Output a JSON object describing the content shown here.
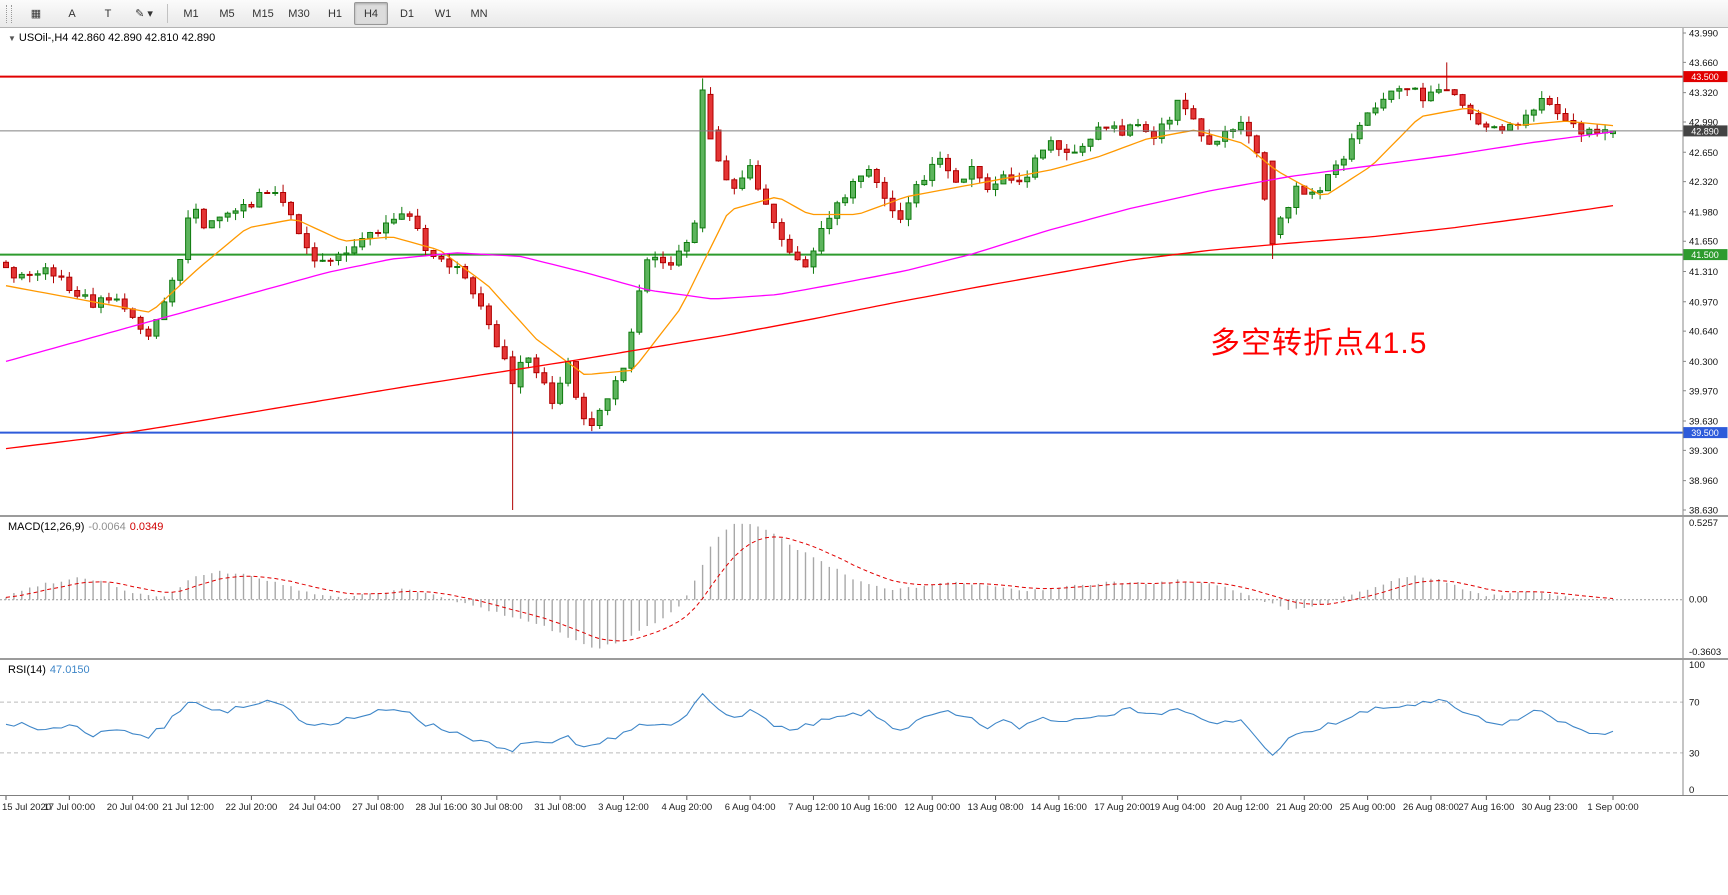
{
  "icons": {
    "chart_arrow": "▼"
  },
  "toolbar": {
    "tools": [
      {
        "name": "chart-grid-icon",
        "glyph": "▦"
      },
      {
        "name": "text-tool-a-button",
        "glyph": "A"
      },
      {
        "name": "text-tool-t-button",
        "glyph": "T"
      },
      {
        "name": "draw-tools-dropdown",
        "glyph": "✎ ▾"
      }
    ],
    "timeframes": [
      {
        "label": "M1",
        "active": false
      },
      {
        "label": "M5",
        "active": false
      },
      {
        "label": "M15",
        "active": false
      },
      {
        "label": "M30",
        "active": false
      },
      {
        "label": "H1",
        "active": false
      },
      {
        "label": "H4",
        "active": true
      },
      {
        "label": "D1",
        "active": false
      },
      {
        "label": "W1",
        "active": false
      },
      {
        "label": "MN",
        "active": false
      }
    ]
  },
  "chart_data": {
    "type": "candlestick",
    "symbol_title": "USOil-,H4 42.860 42.890 42.810 42.890",
    "symbol": "USOil-",
    "timeframe": "H4",
    "ohlc": {
      "open": "42.860",
      "high": "42.890",
      "low": "42.810",
      "close": "42.890"
    },
    "price_axis_labels": [
      "43.990",
      "43.660",
      "43.320",
      "42.990",
      "42.650",
      "42.320",
      "41.980",
      "41.650",
      "41.310",
      "40.970",
      "40.640",
      "40.300",
      "39.970",
      "39.630",
      "39.300",
      "38.960",
      "38.630"
    ],
    "hlines": [
      {
        "price": 43.5,
        "label": "43.500",
        "color": "#e10000"
      },
      {
        "price": 41.5,
        "label": "41.500",
        "color": "#2e9b2e"
      },
      {
        "price": 39.5,
        "label": "39.500",
        "color": "#2e5bda"
      }
    ],
    "current_price": {
      "value": 42.89,
      "label": "42.890",
      "line_color": "#808080",
      "badge_color": "#434343"
    },
    "annotation": {
      "text": "多空转折点41.5",
      "color": "#ff0000"
    },
    "time_labels": [
      "15 Jul 2020",
      "17 Jul 00:00",
      "20 Jul 04:00",
      "21 Jul 12:00",
      "22 Jul 20:00",
      "24 Jul 04:00",
      "27 Jul 08:00",
      "28 Jul 16:00",
      "30 Jul 08:00",
      "31 Jul 08:00",
      "3 Aug 12:00",
      "4 Aug 20:00",
      "6 Aug 04:00",
      "7 Aug 12:00",
      "10 Aug 16:00",
      "12 Aug 00:00",
      "13 Aug 08:00",
      "14 Aug 16:00",
      "17 Aug 20:00",
      "19 Aug 04:00",
      "20 Aug 12:00",
      "21 Aug 20:00",
      "25 Aug 00:00",
      "26 Aug 08:00",
      "27 Aug 16:00",
      "30 Aug 23:00",
      "1 Sep 00:00"
    ],
    "bars": 204,
    "candle_colors": {
      "up_fill": "#5db45d",
      "up_border": "#0e7a0e",
      "down_fill": "#e43535",
      "down_border": "#b00000"
    },
    "close_anchors": [
      [
        0,
        41.35
      ],
      [
        0.012,
        41.2
      ],
      [
        0.025,
        41.38
      ],
      [
        0.04,
        41.1
      ],
      [
        0.055,
        40.95
      ],
      [
        0.068,
        41.05
      ],
      [
        0.088,
        40.55
      ],
      [
        0.098,
        40.9
      ],
      [
        0.108,
        41.4
      ],
      [
        0.115,
        42.1
      ],
      [
        0.125,
        41.8
      ],
      [
        0.138,
        41.95
      ],
      [
        0.15,
        42.05
      ],
      [
        0.166,
        42.25
      ],
      [
        0.178,
        41.9
      ],
      [
        0.19,
        41.5
      ],
      [
        0.2,
        41.4
      ],
      [
        0.215,
        41.55
      ],
      [
        0.232,
        41.8
      ],
      [
        0.25,
        42.0
      ],
      [
        0.262,
        41.55
      ],
      [
        0.272,
        41.4
      ],
      [
        0.285,
        41.3
      ],
      [
        0.298,
        40.8
      ],
      [
        0.31,
        40.3
      ],
      [
        0.315,
        40.05
      ],
      [
        0.322,
        40.35
      ],
      [
        0.33,
        40.2
      ],
      [
        0.34,
        39.85
      ],
      [
        0.35,
        40.3
      ],
      [
        0.358,
        39.7
      ],
      [
        0.365,
        39.62
      ],
      [
        0.375,
        39.95
      ],
      [
        0.385,
        40.3
      ],
      [
        0.395,
        41.2
      ],
      [
        0.402,
        41.55
      ],
      [
        0.412,
        41.35
      ],
      [
        0.422,
        41.6
      ],
      [
        0.429,
        41.85
      ],
      [
        0.433,
        43.3
      ],
      [
        0.439,
        42.9
      ],
      [
        0.447,
        42.35
      ],
      [
        0.455,
        42.2
      ],
      [
        0.463,
        42.5
      ],
      [
        0.472,
        42.05
      ],
      [
        0.482,
        41.7
      ],
      [
        0.498,
        41.32
      ],
      [
        0.508,
        41.8
      ],
      [
        0.518,
        42.1
      ],
      [
        0.536,
        42.45
      ],
      [
        0.548,
        42.15
      ],
      [
        0.556,
        41.9
      ],
      [
        0.57,
        42.35
      ],
      [
        0.583,
        42.6
      ],
      [
        0.592,
        42.3
      ],
      [
        0.602,
        42.5
      ],
      [
        0.612,
        42.2
      ],
      [
        0.622,
        42.45
      ],
      [
        0.632,
        42.25
      ],
      [
        0.642,
        42.6
      ],
      [
        0.652,
        42.8
      ],
      [
        0.662,
        42.6
      ],
      [
        0.673,
        42.8
      ],
      [
        0.684,
        42.95
      ],
      [
        0.695,
        42.85
      ],
      [
        0.705,
        43.0
      ],
      [
        0.714,
        42.85
      ],
      [
        0.722,
        42.95
      ],
      [
        0.73,
        43.25
      ],
      [
        0.74,
        42.95
      ],
      [
        0.75,
        42.7
      ],
      [
        0.76,
        42.85
      ],
      [
        0.77,
        42.95
      ],
      [
        0.78,
        42.6
      ],
      [
        0.786,
        41.65
      ],
      [
        0.794,
        41.95
      ],
      [
        0.804,
        42.25
      ],
      [
        0.814,
        42.15
      ],
      [
        0.822,
        42.4
      ],
      [
        0.83,
        42.55
      ],
      [
        0.845,
        43.0
      ],
      [
        0.862,
        43.3
      ],
      [
        0.875,
        43.35
      ],
      [
        0.885,
        43.25
      ],
      [
        0.895,
        43.4
      ],
      [
        0.905,
        43.2
      ],
      [
        0.915,
        43.0
      ],
      [
        0.925,
        42.9
      ],
      [
        0.934,
        42.95
      ],
      [
        0.944,
        43.0
      ],
      [
        0.955,
        43.25
      ],
      [
        0.968,
        43.1
      ],
      [
        0.98,
        42.9
      ],
      [
        1,
        42.89
      ]
    ],
    "special_bars": [
      {
        "f": 0.315,
        "open": 40.35,
        "close": 40.05,
        "low": 38.63
      },
      {
        "f": 0.433,
        "open": 41.8,
        "close": 43.35,
        "high": 43.48,
        "low": 41.75
      },
      {
        "f": 0.439,
        "open": 43.3,
        "close": 42.8
      },
      {
        "f": 0.786,
        "open": 42.55,
        "close": 41.62,
        "low": 41.45
      },
      {
        "f": 0.895,
        "high": 43.66
      },
      {
        "f": 1.0,
        "open": 42.86,
        "high": 42.89,
        "low": 42.81,
        "close": 42.89
      }
    ],
    "ma_lines": [
      {
        "name": "ma-fast",
        "color": "#ff9900",
        "anchors": [
          [
            0,
            41.15
          ],
          [
            0.03,
            41.05
          ],
          [
            0.06,
            40.95
          ],
          [
            0.09,
            40.85
          ],
          [
            0.12,
            41.35
          ],
          [
            0.15,
            41.8
          ],
          [
            0.18,
            41.9
          ],
          [
            0.21,
            41.65
          ],
          [
            0.24,
            41.7
          ],
          [
            0.27,
            41.55
          ],
          [
            0.3,
            41.15
          ],
          [
            0.33,
            40.55
          ],
          [
            0.36,
            40.15
          ],
          [
            0.39,
            40.2
          ],
          [
            0.42,
            40.9
          ],
          [
            0.45,
            42.0
          ],
          [
            0.48,
            42.15
          ],
          [
            0.5,
            41.95
          ],
          [
            0.53,
            41.95
          ],
          [
            0.56,
            42.15
          ],
          [
            0.59,
            42.25
          ],
          [
            0.62,
            42.35
          ],
          [
            0.65,
            42.45
          ],
          [
            0.68,
            42.6
          ],
          [
            0.71,
            42.8
          ],
          [
            0.74,
            42.9
          ],
          [
            0.77,
            42.75
          ],
          [
            0.79,
            42.45
          ],
          [
            0.82,
            42.15
          ],
          [
            0.85,
            42.5
          ],
          [
            0.88,
            43.05
          ],
          [
            0.91,
            43.15
          ],
          [
            0.94,
            42.95
          ],
          [
            0.97,
            43.0
          ],
          [
            1,
            42.95
          ]
        ]
      },
      {
        "name": "ma-mid",
        "color": "#ff00ff",
        "anchors": [
          [
            0,
            40.3
          ],
          [
            0.05,
            40.55
          ],
          [
            0.1,
            40.8
          ],
          [
            0.15,
            41.05
          ],
          [
            0.2,
            41.3
          ],
          [
            0.24,
            41.45
          ],
          [
            0.28,
            41.52
          ],
          [
            0.32,
            41.48
          ],
          [
            0.36,
            41.3
          ],
          [
            0.4,
            41.1
          ],
          [
            0.44,
            41.0
          ],
          [
            0.48,
            41.05
          ],
          [
            0.52,
            41.18
          ],
          [
            0.56,
            41.32
          ],
          [
            0.6,
            41.5
          ],
          [
            0.65,
            41.78
          ],
          [
            0.7,
            42.02
          ],
          [
            0.75,
            42.22
          ],
          [
            0.8,
            42.38
          ],
          [
            0.85,
            42.5
          ],
          [
            0.9,
            42.62
          ],
          [
            0.95,
            42.76
          ],
          [
            1,
            42.88
          ]
        ]
      },
      {
        "name": "ma-slow",
        "color": "#ff0000",
        "anchors": [
          [
            0,
            39.32
          ],
          [
            0.05,
            39.43
          ],
          [
            0.1,
            39.57
          ],
          [
            0.15,
            39.72
          ],
          [
            0.2,
            39.87
          ],
          [
            0.25,
            40.02
          ],
          [
            0.3,
            40.16
          ],
          [
            0.35,
            40.3
          ],
          [
            0.4,
            40.45
          ],
          [
            0.45,
            40.6
          ],
          [
            0.5,
            40.77
          ],
          [
            0.55,
            40.95
          ],
          [
            0.6,
            41.12
          ],
          [
            0.65,
            41.28
          ],
          [
            0.7,
            41.44
          ],
          [
            0.75,
            41.55
          ],
          [
            0.8,
            41.63
          ],
          [
            0.85,
            41.7
          ],
          [
            0.9,
            41.8
          ],
          [
            0.95,
            41.92
          ],
          [
            1,
            42.05
          ]
        ]
      }
    ],
    "macd": {
      "name": "MACD(12,26,9)",
      "value_main": "-0.0064",
      "value_signal": "0.0349",
      "axis_max": "0.5257",
      "axis_zero": "0.00",
      "axis_min": "-0.3603",
      "hist_color": "#a8a8a8",
      "signal_color": "#e00000",
      "anchors": [
        [
          0,
          0.02
        ],
        [
          0.02,
          0.1
        ],
        [
          0.045,
          0.15
        ],
        [
          0.06,
          0.13
        ],
        [
          0.08,
          0.04
        ],
        [
          0.1,
          0.02
        ],
        [
          0.115,
          0.14
        ],
        [
          0.13,
          0.19
        ],
        [
          0.15,
          0.17
        ],
        [
          0.17,
          0.11
        ],
        [
          0.19,
          0.04
        ],
        [
          0.21,
          0.01
        ],
        [
          0.23,
          0.05
        ],
        [
          0.25,
          0.07
        ],
        [
          0.27,
          0.02
        ],
        [
          0.29,
          -0.04
        ],
        [
          0.31,
          -0.1
        ],
        [
          0.33,
          -0.16
        ],
        [
          0.35,
          -0.25
        ],
        [
          0.365,
          -0.33
        ],
        [
          0.38,
          -0.3
        ],
        [
          0.4,
          -0.18
        ],
        [
          0.42,
          -0.04
        ],
        [
          0.43,
          0.15
        ],
        [
          0.44,
          0.4
        ],
        [
          0.45,
          0.5
        ],
        [
          0.46,
          0.52
        ],
        [
          0.475,
          0.46
        ],
        [
          0.49,
          0.36
        ],
        [
          0.51,
          0.24
        ],
        [
          0.53,
          0.13
        ],
        [
          0.55,
          0.07
        ],
        [
          0.57,
          0.09
        ],
        [
          0.59,
          0.12
        ],
        [
          0.61,
          0.1
        ],
        [
          0.63,
          0.06
        ],
        [
          0.65,
          0.07
        ],
        [
          0.67,
          0.1
        ],
        [
          0.69,
          0.12
        ],
        [
          0.71,
          0.11
        ],
        [
          0.73,
          0.13
        ],
        [
          0.75,
          0.1
        ],
        [
          0.77,
          0.05
        ],
        [
          0.786,
          -0.02
        ],
        [
          0.8,
          -0.07
        ],
        [
          0.82,
          -0.03
        ],
        [
          0.84,
          0.05
        ],
        [
          0.86,
          0.12
        ],
        [
          0.875,
          0.16
        ],
        [
          0.89,
          0.14
        ],
        [
          0.905,
          0.08
        ],
        [
          0.92,
          0.03
        ],
        [
          0.935,
          0.04
        ],
        [
          0.95,
          0.06
        ],
        [
          0.965,
          0.03
        ],
        [
          0.98,
          0.0
        ],
        [
          1,
          -0.006
        ]
      ]
    },
    "rsi": {
      "name": "RSI(14)",
      "value": "47.0150",
      "axis": [
        "100",
        "70",
        "30",
        "0"
      ],
      "levels": [
        70,
        30
      ],
      "line_color": "#3e86c8",
      "anchors": [
        [
          0,
          55
        ],
        [
          0.02,
          48
        ],
        [
          0.04,
          52
        ],
        [
          0.055,
          44
        ],
        [
          0.07,
          50
        ],
        [
          0.088,
          42
        ],
        [
          0.1,
          52
        ],
        [
          0.115,
          74
        ],
        [
          0.13,
          62
        ],
        [
          0.15,
          66
        ],
        [
          0.166,
          70
        ],
        [
          0.18,
          60
        ],
        [
          0.19,
          52
        ],
        [
          0.21,
          56
        ],
        [
          0.232,
          62
        ],
        [
          0.25,
          64
        ],
        [
          0.262,
          52
        ],
        [
          0.275,
          48
        ],
        [
          0.29,
          42
        ],
        [
          0.305,
          34
        ],
        [
          0.315,
          30
        ],
        [
          0.325,
          40
        ],
        [
          0.34,
          36
        ],
        [
          0.35,
          42
        ],
        [
          0.358,
          32
        ],
        [
          0.365,
          34
        ],
        [
          0.38,
          44
        ],
        [
          0.395,
          52
        ],
        [
          0.41,
          50
        ],
        [
          0.42,
          54
        ],
        [
          0.433,
          76
        ],
        [
          0.44,
          68
        ],
        [
          0.45,
          60
        ],
        [
          0.463,
          62
        ],
        [
          0.475,
          55
        ],
        [
          0.49,
          46
        ],
        [
          0.5,
          52
        ],
        [
          0.52,
          58
        ],
        [
          0.536,
          62
        ],
        [
          0.556,
          48
        ],
        [
          0.57,
          56
        ],
        [
          0.583,
          62
        ],
        [
          0.6,
          56
        ],
        [
          0.61,
          50
        ],
        [
          0.62,
          55
        ],
        [
          0.63,
          50
        ],
        [
          0.645,
          58
        ],
        [
          0.66,
          55
        ],
        [
          0.673,
          60
        ],
        [
          0.69,
          62
        ],
        [
          0.705,
          64
        ],
        [
          0.72,
          60
        ],
        [
          0.73,
          66
        ],
        [
          0.74,
          58
        ],
        [
          0.75,
          52
        ],
        [
          0.77,
          56
        ],
        [
          0.786,
          28
        ],
        [
          0.8,
          42
        ],
        [
          0.815,
          48
        ],
        [
          0.83,
          55
        ],
        [
          0.845,
          62
        ],
        [
          0.862,
          66
        ],
        [
          0.875,
          68
        ],
        [
          0.895,
          70
        ],
        [
          0.91,
          60
        ],
        [
          0.925,
          52
        ],
        [
          0.94,
          56
        ],
        [
          0.955,
          64
        ],
        [
          0.968,
          55
        ],
        [
          0.98,
          46
        ],
        [
          1,
          47
        ]
      ]
    }
  }
}
